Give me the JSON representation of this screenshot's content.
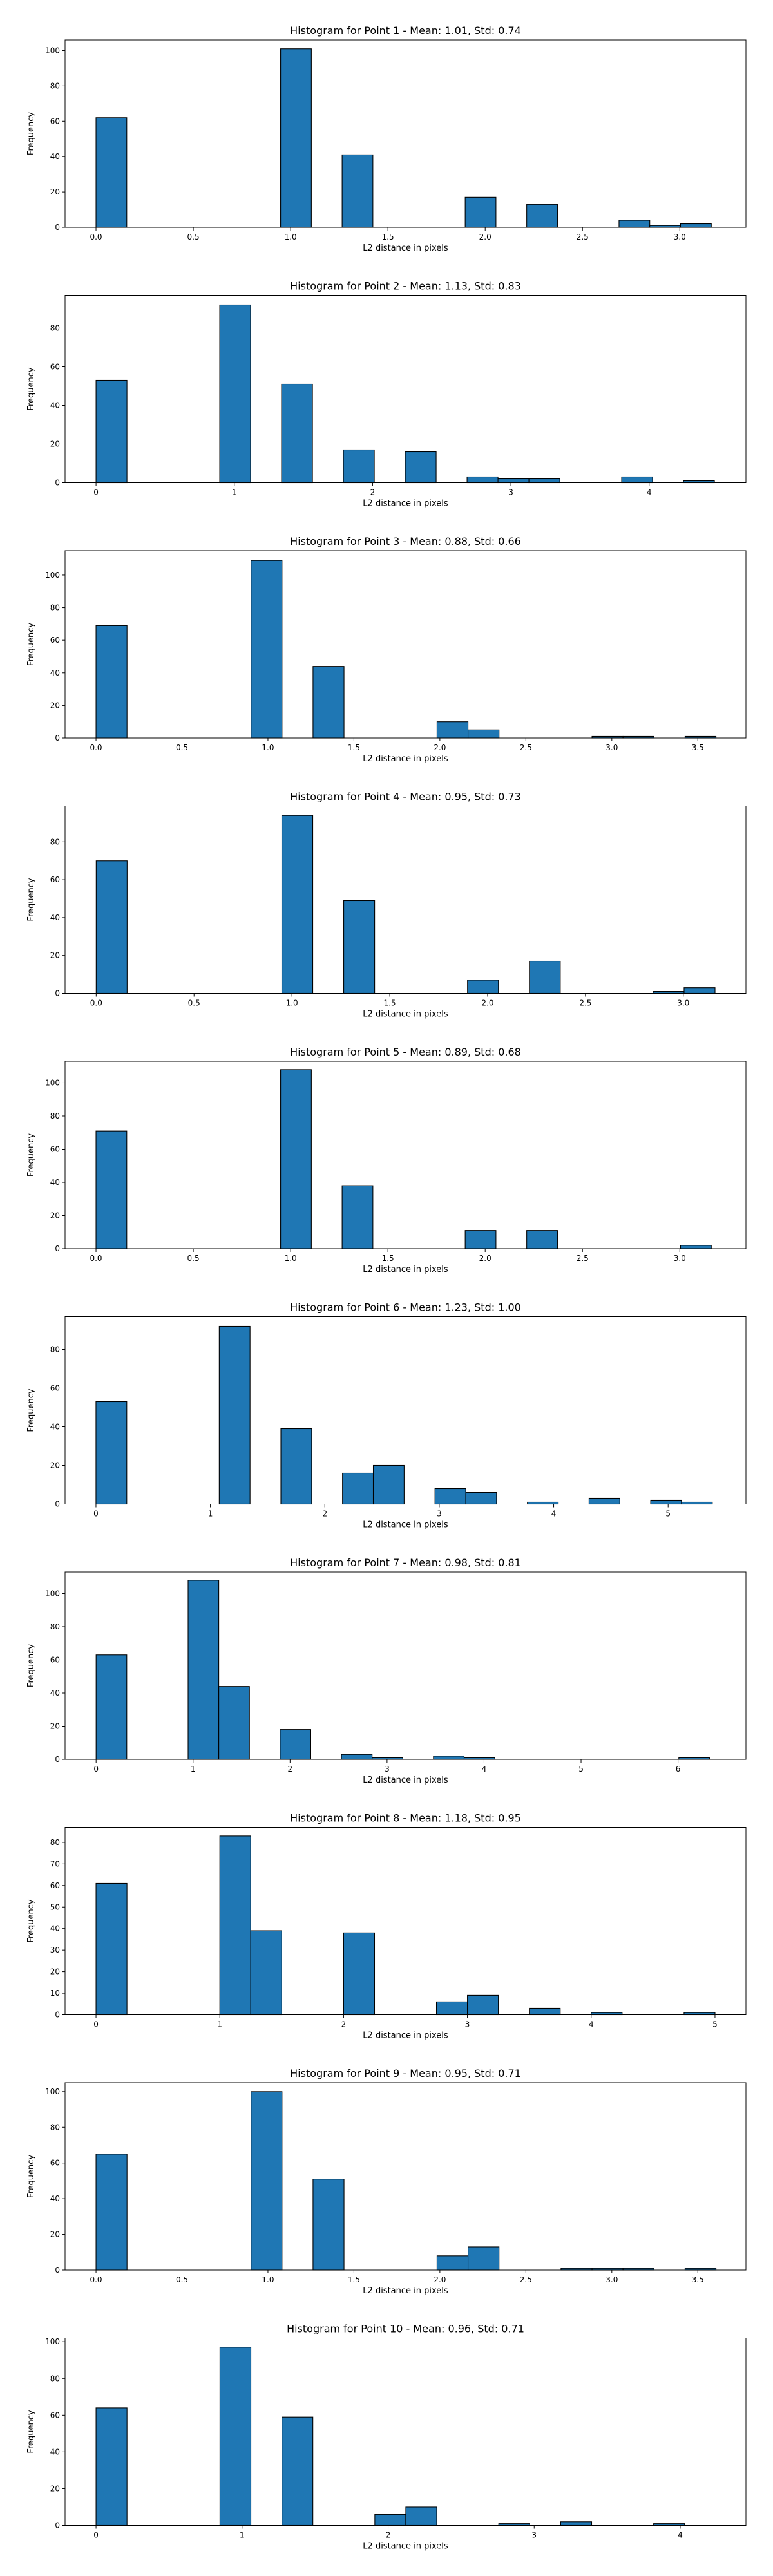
{
  "chart_data": [
    {
      "type": "bar",
      "title": "Histogram for Point 1 - Mean: 1.01, Std: 0.74",
      "xlabel": "L2 distance in pixels",
      "ylabel": "Frequency",
      "xlim": [
        -0.159,
        3.34
      ],
      "ylim": [
        0,
        106
      ],
      "xticks": [
        0.0,
        0.5,
        1.0,
        1.5,
        2.0,
        2.5,
        3.0
      ],
      "xtick_labels": [
        "0.0",
        "0.5",
        "1.0",
        "1.5",
        "2.0",
        "2.5",
        "3.0"
      ],
      "yticks": [
        0,
        20,
        40,
        60,
        80,
        100
      ],
      "ytick_labels": [
        "0",
        "20",
        "40",
        "60",
        "80",
        "100"
      ],
      "bin_start": 0.0,
      "bin_width": 0.1581,
      "values": [
        62,
        0,
        0,
        0,
        0,
        0,
        101,
        0,
        41,
        0,
        0,
        0,
        17,
        0,
        13,
        0,
        0,
        4,
        1,
        2
      ]
    },
    {
      "type": "bar",
      "title": "Histogram for Point 2 - Mean: 1.13, Std: 0.83",
      "xlabel": "L2 distance in pixels",
      "ylabel": "Frequency",
      "xlim": [
        -0.224,
        4.7
      ],
      "ylim": [
        0,
        97
      ],
      "xticks": [
        0,
        1,
        2,
        3,
        4
      ],
      "xtick_labels": [
        "0",
        "1",
        "2",
        "3",
        "4"
      ],
      "yticks": [
        0,
        20,
        40,
        60,
        80
      ],
      "ytick_labels": [
        "0",
        "20",
        "40",
        "60",
        "80"
      ],
      "bin_start": 0.0,
      "bin_width": 0.2236,
      "values": [
        53,
        0,
        0,
        0,
        92,
        0,
        51,
        0,
        17,
        0,
        16,
        0,
        3,
        2,
        2,
        0,
        0,
        3,
        0,
        1
      ]
    },
    {
      "type": "bar",
      "title": "Histogram for Point 3 - Mean: 0.88, Std: 0.66",
      "xlabel": "L2 distance in pixels",
      "ylabel": "Frequency",
      "xlim": [
        -0.18,
        3.78
      ],
      "ylim": [
        0,
        115
      ],
      "xticks": [
        0.0,
        0.5,
        1.0,
        1.5,
        2.0,
        2.5,
        3.0,
        3.5
      ],
      "xtick_labels": [
        "0.0",
        "0.5",
        "1.0",
        "1.5",
        "2.0",
        "2.5",
        "3.0",
        "3.5"
      ],
      "yticks": [
        0,
        20,
        40,
        60,
        80,
        100
      ],
      "ytick_labels": [
        "0",
        "20",
        "40",
        "60",
        "80",
        "100"
      ],
      "bin_start": 0.0,
      "bin_width": 0.1803,
      "values": [
        69,
        0,
        0,
        0,
        0,
        109,
        0,
        44,
        0,
        0,
        0,
        10,
        5,
        0,
        0,
        0,
        1,
        1,
        0,
        1
      ]
    },
    {
      "type": "bar",
      "title": "Histogram for Point 4 - Mean: 0.95, Std: 0.73",
      "xlabel": "L2 distance in pixels",
      "ylabel": "Frequency",
      "xlim": [
        -0.159,
        3.32
      ],
      "ylim": [
        0,
        99
      ],
      "xticks": [
        0.0,
        0.5,
        1.0,
        1.5,
        2.0,
        2.5,
        3.0
      ],
      "xtick_labels": [
        "0.0",
        "0.5",
        "1.0",
        "1.5",
        "2.0",
        "2.5",
        "3.0"
      ],
      "yticks": [
        0,
        20,
        40,
        60,
        80
      ],
      "ytick_labels": [
        "0",
        "20",
        "40",
        "60",
        "80"
      ],
      "bin_start": 0.0,
      "bin_width": 0.1581,
      "values": [
        70,
        0,
        0,
        0,
        0,
        0,
        94,
        0,
        49,
        0,
        0,
        0,
        7,
        0,
        17,
        0,
        0,
        0,
        1,
        3
      ]
    },
    {
      "type": "bar",
      "title": "Histogram for Point 5 - Mean: 0.89, Std: 0.68",
      "xlabel": "L2 distance in pixels",
      "ylabel": "Frequency",
      "xlim": [
        -0.159,
        3.34
      ],
      "ylim": [
        0,
        113
      ],
      "xticks": [
        0.0,
        0.5,
        1.0,
        1.5,
        2.0,
        2.5,
        3.0
      ],
      "xtick_labels": [
        "0.0",
        "0.5",
        "1.0",
        "1.5",
        "2.0",
        "2.5",
        "3.0"
      ],
      "yticks": [
        0,
        20,
        40,
        60,
        80,
        100
      ],
      "ytick_labels": [
        "0",
        "20",
        "40",
        "60",
        "80",
        "100"
      ],
      "bin_start": 0.0,
      "bin_width": 0.1581,
      "values": [
        71,
        0,
        0,
        0,
        0,
        0,
        108,
        0,
        38,
        0,
        0,
        0,
        11,
        0,
        11,
        0,
        0,
        0,
        0,
        2
      ]
    },
    {
      "type": "bar",
      "title": "Histogram for Point 6 - Mean: 1.23, Std: 1.00",
      "xlabel": "L2 distance in pixels",
      "ylabel": "Frequency",
      "xlim": [
        -0.27,
        5.68
      ],
      "ylim": [
        0,
        97
      ],
      "xticks": [
        0,
        1,
        2,
        3,
        4,
        5
      ],
      "xtick_labels": [
        "0",
        "1",
        "2",
        "3",
        "4",
        "5"
      ],
      "yticks": [
        0,
        20,
        40,
        60,
        80
      ],
      "ytick_labels": [
        "0",
        "20",
        "40",
        "60",
        "80"
      ],
      "bin_start": 0.0,
      "bin_width": 0.2693,
      "values": [
        53,
        0,
        0,
        0,
        92,
        0,
        39,
        0,
        16,
        20,
        0,
        8,
        6,
        0,
        1,
        0,
        3,
        0,
        2,
        1
      ]
    },
    {
      "type": "bar",
      "title": "Histogram for Point 7 - Mean: 0.98, Std: 0.81",
      "xlabel": "L2 distance in pixels",
      "ylabel": "Frequency",
      "xlim": [
        -0.32,
        6.7
      ],
      "ylim": [
        0,
        113
      ],
      "xticks": [
        0,
        1,
        2,
        3,
        4,
        5,
        6
      ],
      "xtick_labels": [
        "0",
        "1",
        "2",
        "3",
        "4",
        "5",
        "6"
      ],
      "yticks": [
        0,
        20,
        40,
        60,
        80,
        100
      ],
      "ytick_labels": [
        "0",
        "20",
        "40",
        "60",
        "80",
        "100"
      ],
      "bin_start": 0.0,
      "bin_width": 0.3162,
      "values": [
        63,
        0,
        0,
        108,
        44,
        0,
        18,
        0,
        3,
        1,
        0,
        2,
        1,
        0,
        0,
        0,
        0,
        0,
        0,
        1
      ]
    },
    {
      "type": "bar",
      "title": "Histogram for Point 8 - Mean: 1.18, Std: 0.95",
      "xlabel": "L2 distance in pixels",
      "ylabel": "Frequency",
      "xlim": [
        -0.25,
        5.25
      ],
      "ylim": [
        0,
        87
      ],
      "xticks": [
        0,
        1,
        2,
        3,
        4,
        5
      ],
      "xtick_labels": [
        "0",
        "1",
        "2",
        "3",
        "4",
        "5"
      ],
      "yticks": [
        0,
        10,
        20,
        30,
        40,
        50,
        60,
        70,
        80
      ],
      "ytick_labels": [
        "0",
        "10",
        "20",
        "30",
        "40",
        "50",
        "60",
        "70",
        "80"
      ],
      "bin_start": 0.0,
      "bin_width": 0.25,
      "values": [
        61,
        0,
        0,
        0,
        83,
        39,
        0,
        0,
        38,
        0,
        0,
        6,
        9,
        0,
        3,
        0,
        1,
        0,
        0,
        1
      ]
    },
    {
      "type": "bar",
      "title": "Histogram for Point 9 - Mean: 0.95, Std: 0.71",
      "xlabel": "L2 distance in pixels",
      "ylabel": "Frequency",
      "xlim": [
        -0.18,
        3.78
      ],
      "ylim": [
        0,
        105
      ],
      "xticks": [
        0.0,
        0.5,
        1.0,
        1.5,
        2.0,
        2.5,
        3.0,
        3.5
      ],
      "xtick_labels": [
        "0.0",
        "0.5",
        "1.0",
        "1.5",
        "2.0",
        "2.5",
        "3.0",
        "3.5"
      ],
      "yticks": [
        0,
        20,
        40,
        60,
        80,
        100
      ],
      "ytick_labels": [
        "0",
        "20",
        "40",
        "60",
        "80",
        "100"
      ],
      "bin_start": 0.0,
      "bin_width": 0.1803,
      "values": [
        65,
        0,
        0,
        0,
        0,
        100,
        0,
        51,
        0,
        0,
        0,
        8,
        13,
        0,
        0,
        1,
        1,
        1,
        0,
        1
      ]
    },
    {
      "type": "bar",
      "title": "Histogram for Point 10 - Mean: 0.96, Std: 0.71",
      "xlabel": "L2 distance in pixels",
      "ylabel": "Frequency",
      "xlim": [
        -0.212,
        4.45
      ],
      "ylim": [
        0,
        102
      ],
      "xticks": [
        0,
        1,
        2,
        3,
        4
      ],
      "xtick_labels": [
        "0",
        "1",
        "2",
        "3",
        "4"
      ],
      "yticks": [
        0,
        20,
        40,
        60,
        80,
        100
      ],
      "ytick_labels": [
        "0",
        "20",
        "40",
        "60",
        "80",
        "100"
      ],
      "bin_start": 0.0,
      "bin_width": 0.2121,
      "values": [
        64,
        0,
        0,
        0,
        97,
        0,
        59,
        0,
        0,
        6,
        10,
        0,
        0,
        1,
        0,
        2,
        0,
        0,
        1,
        0
      ]
    }
  ],
  "colors": {
    "bar_fill": "#1f77b4",
    "bar_edge": "#000000",
    "axes": "#000000",
    "background": "#ffffff"
  }
}
